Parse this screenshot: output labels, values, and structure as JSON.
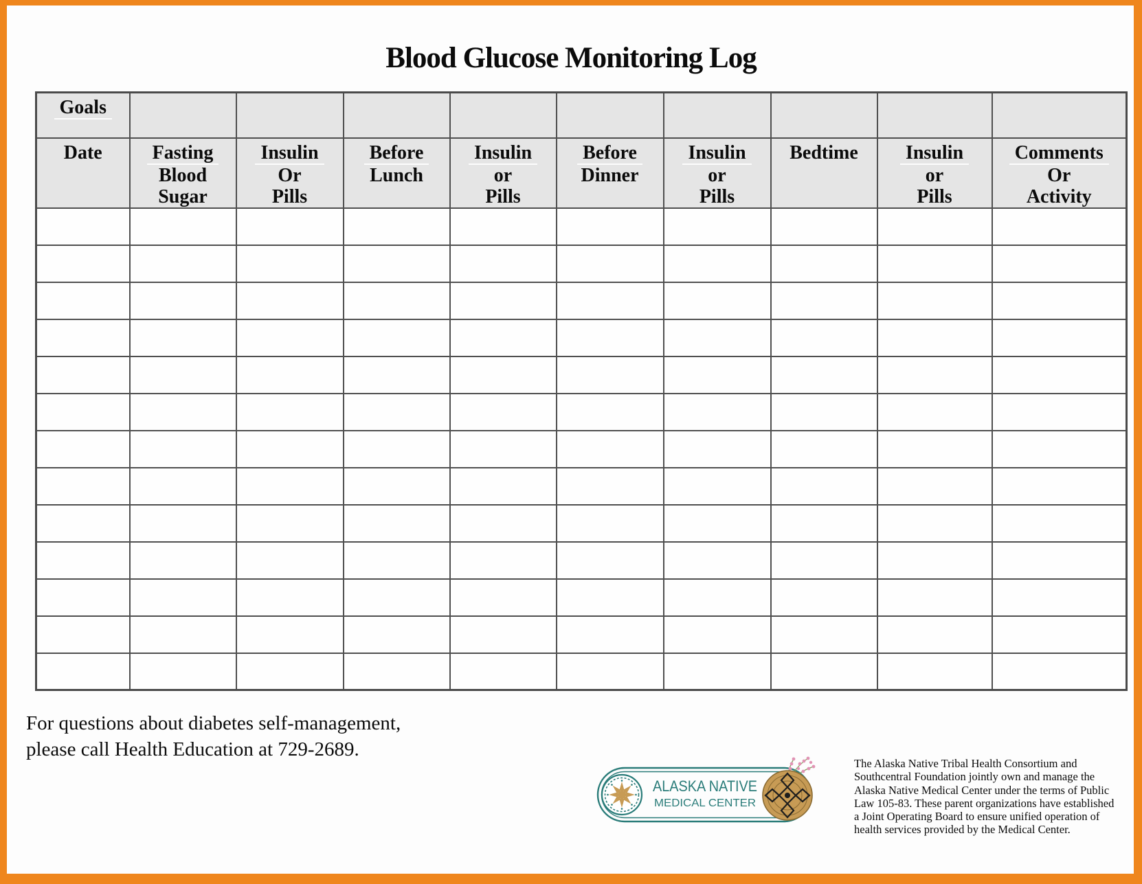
{
  "page": {
    "title": "Blood Glucose Monitoring Log",
    "frame_color": "#EF861D"
  },
  "table": {
    "goals_label": "Goals",
    "header_bg": "#e5e5e5",
    "columns": [
      {
        "lines": [
          "Date"
        ],
        "underline_first": false
      },
      {
        "lines": [
          "Fasting",
          "Blood",
          "Sugar"
        ],
        "underline_first": true
      },
      {
        "lines": [
          "Insulin",
          "Or",
          "Pills"
        ],
        "underline_first": true
      },
      {
        "lines": [
          "Before",
          "Lunch"
        ],
        "underline_first": true
      },
      {
        "lines": [
          "Insulin",
          "or",
          "Pills"
        ],
        "underline_first": true
      },
      {
        "lines": [
          "Before",
          "Dinner"
        ],
        "underline_first": true
      },
      {
        "lines": [
          "Insulin",
          "or",
          "Pills"
        ],
        "underline_first": true
      },
      {
        "lines": [
          "Bedtime"
        ],
        "underline_first": false
      },
      {
        "lines": [
          "Insulin",
          "or",
          "Pills"
        ],
        "underline_first": true
      },
      {
        "lines": [
          "Comments",
          "Or",
          "Activity"
        ],
        "underline_first": true
      }
    ],
    "body_rows": 13
  },
  "footer": {
    "contact_line1": "For questions about diabetes self-management,",
    "contact_line2": "please call Health Education at 729-2689."
  },
  "logo": {
    "line1": "ALASKA NATIVE",
    "line2": "MEDICAL CENTER",
    "teal": "#2A7C79",
    "tan": "#C79B55",
    "pink": "#E193B4",
    "green": "#7FA05B"
  },
  "disclaimer": {
    "lines": [
      "The Alaska Native Tribal Health Consortium and",
      "Southcentral Foundation jointly own and manage the",
      "Alaska Native Medical Center under the terms of Public",
      "Law 105-83.  These parent organizations have established",
      "a Joint Operating Board to ensure unified operation of",
      "health services provided by the Medical Center."
    ]
  }
}
